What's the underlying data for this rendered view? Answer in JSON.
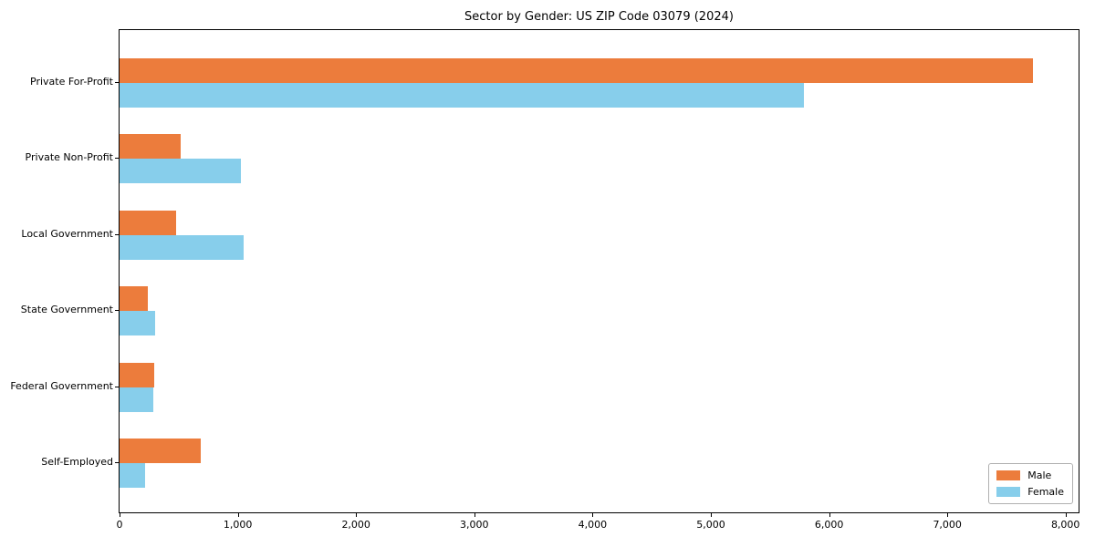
{
  "chart_data": {
    "type": "bar",
    "orientation": "horizontal",
    "title": "Sector by Gender: US ZIP Code 03079 (2024)",
    "categories": [
      "Private For-Profit",
      "Private Non-Profit",
      "Local Government",
      "State Government",
      "Federal Government",
      "Self-Employed"
    ],
    "series": [
      {
        "name": "Male",
        "color": "#EC7C3C",
        "values": [
          7720,
          515,
          480,
          235,
          290,
          685
        ]
      },
      {
        "name": "Female",
        "color": "#87CEEB",
        "values": [
          5790,
          1025,
          1050,
          300,
          285,
          215
        ]
      }
    ],
    "xlabel": "",
    "ylabel": "",
    "xlim": [
      0,
      8110
    ],
    "xticks": [
      0,
      1000,
      2000,
      3000,
      4000,
      5000,
      6000,
      7000,
      8000
    ],
    "xtick_labels": [
      "0",
      "1,000",
      "2,000",
      "3,000",
      "4,000",
      "5,000",
      "6,000",
      "7,000",
      "8,000"
    ],
    "legend": {
      "position": "lower right",
      "entries": [
        "Male",
        "Female"
      ]
    },
    "grid": false,
    "background_color": "#ffffff",
    "spine_color": "#000000"
  }
}
